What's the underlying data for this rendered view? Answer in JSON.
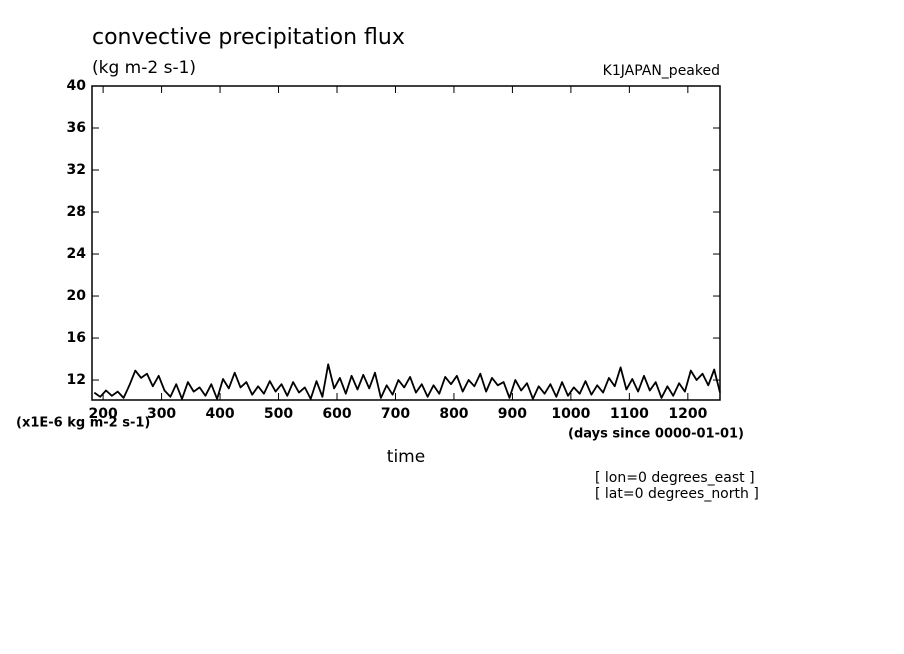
{
  "chart_data": {
    "type": "line",
    "title": "convective precipitation flux",
    "subtitle": "(kg m-2 s-1)",
    "annotation": "K1JAPAN_peaked",
    "y_unit_label": "(x1E-6 kg m-2 s-1)",
    "x_unit_label": "(days since 0000-01-01)",
    "xlabel": "time",
    "notes": [
      "[ lon=0 degrees_east ]",
      "[ lat=0 degrees_north ]"
    ],
    "color": "#000000",
    "xlim": [
      181,
      1255
    ],
    "ylim": [
      10.1,
      40
    ],
    "xticks": [
      200,
      300,
      400,
      500,
      600,
      700,
      800,
      900,
      1000,
      1100,
      1200
    ],
    "yticks": [
      12,
      16,
      20,
      24,
      28,
      32,
      36,
      40
    ],
    "x": [
      185,
      195,
      205,
      215,
      225,
      235,
      245,
      255,
      265,
      275,
      285,
      295,
      305,
      315,
      325,
      335,
      345,
      355,
      365,
      375,
      385,
      395,
      405,
      415,
      425,
      435,
      445,
      455,
      465,
      475,
      485,
      495,
      505,
      515,
      525,
      535,
      545,
      555,
      565,
      575,
      585,
      595,
      605,
      615,
      625,
      635,
      645,
      655,
      665,
      675,
      685,
      695,
      705,
      715,
      725,
      735,
      745,
      755,
      765,
      775,
      785,
      795,
      805,
      815,
      825,
      835,
      845,
      855,
      865,
      875,
      885,
      895,
      905,
      915,
      925,
      935,
      945,
      955,
      965,
      975,
      985,
      995,
      1005,
      1015,
      1025,
      1035,
      1045,
      1055,
      1065,
      1075,
      1085,
      1095,
      1105,
      1115,
      1125,
      1135,
      1145,
      1155,
      1165,
      1175,
      1185,
      1195,
      1205,
      1215,
      1225,
      1235,
      1245,
      1255
    ],
    "values": [
      10.8,
      10.4,
      11.0,
      10.5,
      10.9,
      10.3,
      11.5,
      12.9,
      12.2,
      12.6,
      11.4,
      12.4,
      11.0,
      10.4,
      11.6,
      10.2,
      11.8,
      10.9,
      11.3,
      10.5,
      11.6,
      10.2,
      12.1,
      11.2,
      12.7,
      11.3,
      11.8,
      10.6,
      11.4,
      10.7,
      11.9,
      10.9,
      11.6,
      10.5,
      11.8,
      10.8,
      11.3,
      10.2,
      11.9,
      10.4,
      13.5,
      11.2,
      12.2,
      10.7,
      12.4,
      11.1,
      12.5,
      11.2,
      12.7,
      10.3,
      11.5,
      10.6,
      12.0,
      11.3,
      12.3,
      10.8,
      11.6,
      10.4,
      11.5,
      10.7,
      12.3,
      11.6,
      12.4,
      10.9,
      12.0,
      11.4,
      12.6,
      10.9,
      12.2,
      11.5,
      11.8,
      10.3,
      12.0,
      11.0,
      11.7,
      10.2,
      11.4,
      10.7,
      11.6,
      10.4,
      11.8,
      10.5,
      11.3,
      10.7,
      11.9,
      10.6,
      11.5,
      10.8,
      12.2,
      11.4,
      13.2,
      11.1,
      12.1,
      10.9,
      12.4,
      11.0,
      11.8,
      10.3,
      11.4,
      10.5,
      11.7,
      10.9,
      12.9,
      12.0,
      12.6,
      11.5,
      13.0,
      10.8
    ]
  }
}
